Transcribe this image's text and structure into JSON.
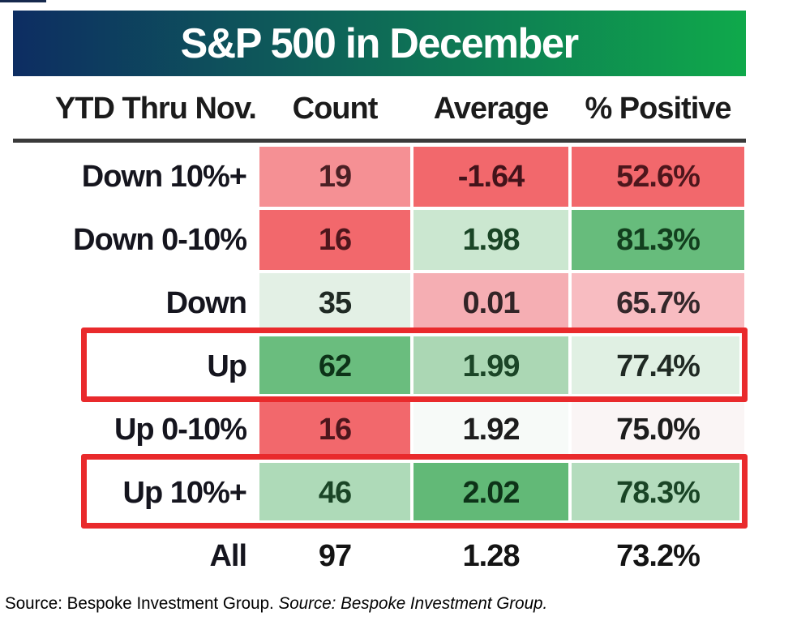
{
  "title": "S&P 500 in December",
  "header": {
    "gradient_left": "#0d2d62",
    "gradient_right": "#0fa94b",
    "text_color": "#ffffff"
  },
  "divider_color": "#3a3a3a",
  "highlight_color": "#e92a2c",
  "columns": {
    "c0": "YTD Thru Nov.",
    "c1": "Count",
    "c2": "Average",
    "c3": "% Positive"
  },
  "rows": [
    {
      "label": "Down 10%+",
      "highlighted": false,
      "cells": [
        {
          "value": "19",
          "bg": "#f59094",
          "fg": "#4a2024"
        },
        {
          "value": "-1.64",
          "bg": "#f2686c",
          "fg": "#42131a"
        },
        {
          "value": "52.6%",
          "bg": "#f2686c",
          "fg": "#4d161c"
        }
      ]
    },
    {
      "label": "Down 0-10%",
      "highlighted": false,
      "cells": [
        {
          "value": "16",
          "bg": "#f2686c",
          "fg": "#4d161c"
        },
        {
          "value": "1.98",
          "bg": "#cbe7d0",
          "fg": "#1a4526"
        },
        {
          "value": "81.3%",
          "bg": "#67bc7c",
          "fg": "#123f1e"
        }
      ]
    },
    {
      "label": "Down",
      "highlighted": false,
      "cells": [
        {
          "value": "35",
          "bg": "#e3f0e5",
          "fg": "#202a24"
        },
        {
          "value": "0.01",
          "bg": "#f5aeb3",
          "fg": "#322427"
        },
        {
          "value": "65.7%",
          "bg": "#f8bcc1",
          "fg": "#35282b"
        }
      ]
    },
    {
      "label": "Up",
      "highlighted": true,
      "cells": [
        {
          "value": "62",
          "bg": "#6abd7e",
          "fg": "#0d3318"
        },
        {
          "value": "1.99",
          "bg": "#abd7b4",
          "fg": "#1b4527"
        },
        {
          "value": "77.4%",
          "bg": "#e0f0e3",
          "fg": "#202a24"
        }
      ]
    },
    {
      "label": "Up 0-10%",
      "highlighted": false,
      "cells": [
        {
          "value": "16",
          "bg": "#f2686c",
          "fg": "#4d161c"
        },
        {
          "value": "1.92",
          "bg": "#f7faf8",
          "fg": "#1d1d1d"
        },
        {
          "value": "75.0%",
          "bg": "#faf5f5",
          "fg": "#1d1d1d"
        }
      ]
    },
    {
      "label": "Up 10%+",
      "highlighted": true,
      "cells": [
        {
          "value": "46",
          "bg": "#aedab8",
          "fg": "#1a4526"
        },
        {
          "value": "2.02",
          "bg": "#62b977",
          "fg": "#0d3318"
        },
        {
          "value": "78.3%",
          "bg": "#b4dcbd",
          "fg": "#1a4526"
        }
      ]
    },
    {
      "label": "All",
      "highlighted": false,
      "cells": [
        {
          "value": "97",
          "bg": "#ffffff",
          "fg": "#141414"
        },
        {
          "value": "1.28",
          "bg": "#ffffff",
          "fg": "#141414"
        },
        {
          "value": "73.2%",
          "bg": "#ffffff",
          "fg": "#141414"
        }
      ]
    }
  ],
  "footer": {
    "normal": "Source: Bespoke Investment Group. ",
    "italic": "Source: Bespoke Investment Group."
  },
  "chart_data": {
    "type": "table",
    "title": "S&P 500 in December",
    "columns": [
      "YTD Thru Nov.",
      "Count",
      "Average",
      "% Positive"
    ],
    "rows": [
      [
        "Down 10%+",
        19,
        -1.64,
        "52.6%"
      ],
      [
        "Down 0-10%",
        16,
        1.98,
        "81.3%"
      ],
      [
        "Down",
        35,
        0.01,
        "65.7%"
      ],
      [
        "Up",
        62,
        1.99,
        "77.4%"
      ],
      [
        "Up 0-10%",
        16,
        1.92,
        "75.0%"
      ],
      [
        "Up 10%+",
        46,
        2.02,
        "78.3%"
      ],
      [
        "All",
        97,
        1.28,
        "73.2%"
      ]
    ],
    "highlighted_rows": [
      "Up",
      "Up 10%+"
    ],
    "color_coding": "red-to-green heatmap per column",
    "source": "Bespoke Investment Group"
  }
}
